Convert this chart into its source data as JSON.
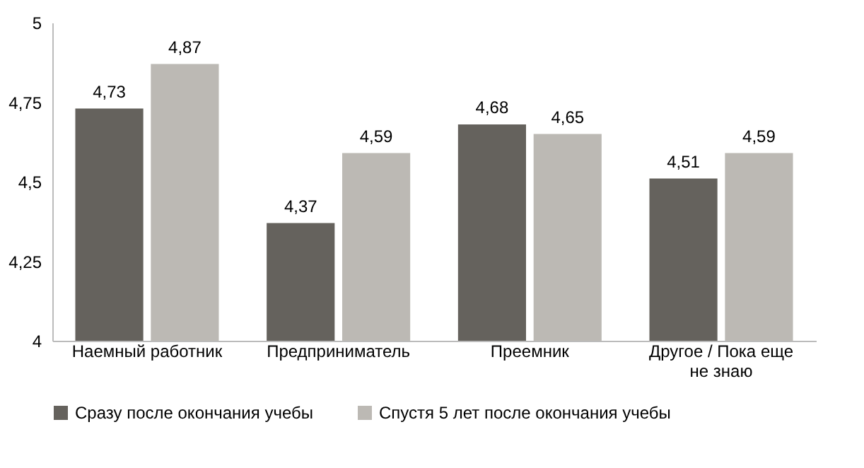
{
  "chart_data": {
    "type": "bar",
    "categories": [
      "Наемный работник",
      "Предприниматель",
      "Преемник",
      "Другое / Пока еще не знаю"
    ],
    "series": [
      {
        "name": "Сразу после окончания учебы",
        "color": "#65625d",
        "values": [
          4.73,
          4.37,
          4.68,
          4.51
        ],
        "value_labels": [
          "4,73",
          "4,37",
          "4,68",
          "4,51"
        ]
      },
      {
        "name": "Спустя 5 лет после окончания учебы",
        "color": "#bcb9b4",
        "values": [
          4.87,
          4.59,
          4.65,
          4.59
        ],
        "value_labels": [
          "4,87",
          "4,59",
          "4,65",
          "4,59"
        ]
      }
    ],
    "ylim": [
      4,
      5
    ],
    "yticks": [
      4,
      {
        "value": 4.25,
        "label": "4,25"
      },
      {
        "value": 4.5,
        "label": "4,5"
      },
      {
        "value": 4.75,
        "label": "4,75"
      },
      5
    ],
    "grid": false,
    "legend": "bottom"
  }
}
